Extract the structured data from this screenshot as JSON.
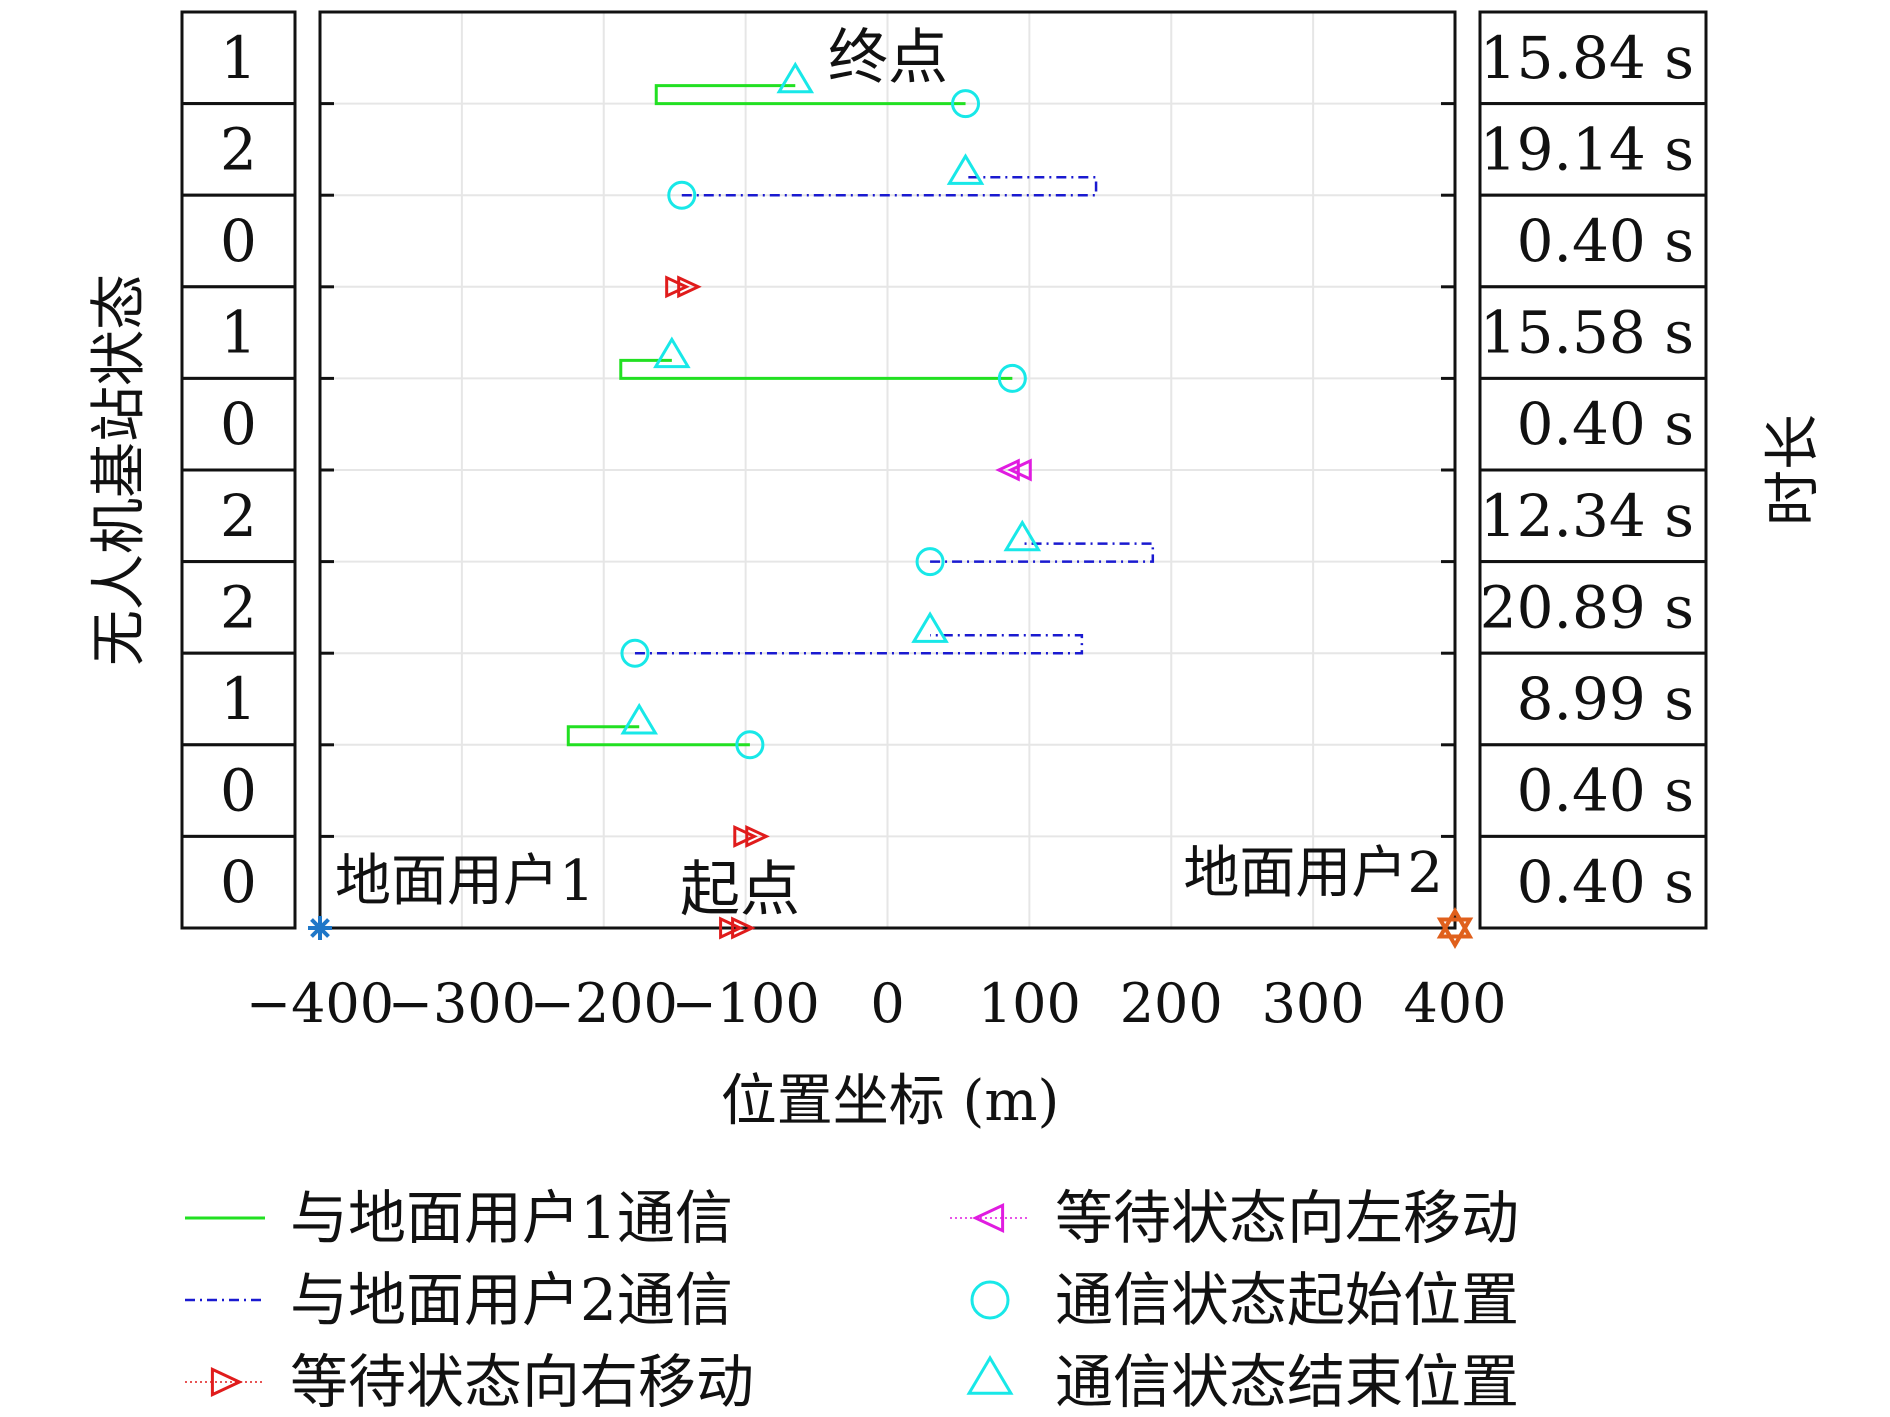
{
  "chart_data": {
    "type": "line",
    "xlabel": "位置坐标 (m)",
    "ylabel_left": "无人机基站状态",
    "ylabel_right": "时长",
    "xlim": [
      -400,
      400
    ],
    "x_ticks": [
      "−400",
      "−300",
      "−200",
      "−100",
      "0",
      "100",
      "200",
      "300",
      "400"
    ],
    "x_tick_values": [
      -400,
      -300,
      -200,
      -100,
      0,
      100,
      200,
      300,
      400
    ],
    "grid": true,
    "states": [
      "1",
      "2",
      "0",
      "1",
      "0",
      "2",
      "2",
      "1",
      "0",
      "0"
    ],
    "durations": [
      "15.84 s",
      "19.14 s",
      "0.40 s",
      "15.58 s",
      "0.40 s",
      "12.34 s",
      "20.89 s",
      "8.99 s",
      "0.40 s",
      "0.40 s"
    ],
    "colors": {
      "user1": "#22e022",
      "user2": "#1a1ad0",
      "wait_right": "#e01c1c",
      "wait_left": "#e01ce0",
      "marker": "#18e8e8",
      "user1_marker": "#1f77c8",
      "user2_marker": "#e0601c"
    },
    "segments": [
      {
        "row": 1,
        "kind": "user1",
        "start": 55,
        "end": -65,
        "ext": -163
      },
      {
        "row": 2,
        "kind": "user2",
        "start": -145,
        "end": 55,
        "ext": 147
      },
      {
        "row": 3,
        "kind": "wait_right",
        "x": -145
      },
      {
        "row": 4,
        "kind": "user1",
        "start": 88,
        "end": -152,
        "ext": -188
      },
      {
        "row": 5,
        "kind": "wait_left",
        "x": 90
      },
      {
        "row": 6,
        "kind": "user2",
        "start": 30,
        "end": 95,
        "ext": 187
      },
      {
        "row": 7,
        "kind": "user2",
        "start": -178,
        "end": 30,
        "ext": 137
      },
      {
        "row": 8,
        "kind": "user1",
        "start": -97,
        "end": -175,
        "ext": -225
      },
      {
        "row": 9,
        "kind": "wait_right",
        "x": -97
      },
      {
        "row": 10,
        "kind": "wait_right",
        "x": -107
      }
    ],
    "annotations": {
      "end_label": "终点",
      "start_label": "起点",
      "user1_label": "地面用户1",
      "user2_label": "地面用户2"
    },
    "user_positions": {
      "user1": -400,
      "user2": 400
    },
    "legend": [
      {
        "label": "与地面用户1通信",
        "symbol": "line-solid",
        "color": "#22e022"
      },
      {
        "label": "等待状态向左移动",
        "symbol": "tri-left",
        "color": "#e01ce0"
      },
      {
        "label": "与地面用户2通信",
        "symbol": "line-dashdot",
        "color": "#1a1ad0"
      },
      {
        "label": "通信状态起始位置",
        "symbol": "circle",
        "color": "#18e8e8"
      },
      {
        "label": "等待状态向右移动",
        "symbol": "tri-right",
        "color": "#e01c1c"
      },
      {
        "label": "通信状态结束位置",
        "symbol": "tri-up",
        "color": "#18e8e8"
      }
    ]
  }
}
